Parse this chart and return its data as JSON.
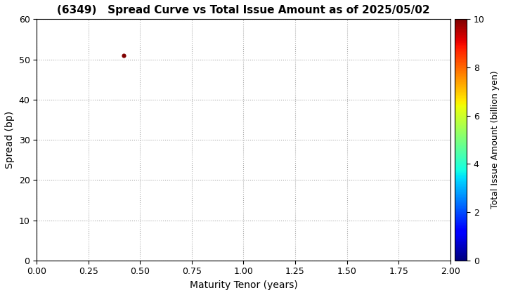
{
  "title": "(6349)   Spread Curve vs Total Issue Amount as of 2025/05/02",
  "xlabel": "Maturity Tenor (years)",
  "ylabel": "Spread (bp)",
  "colorbar_label": "Total Issue Amount (billion yen)",
  "xlim": [
    0.0,
    2.0
  ],
  "ylim": [
    0,
    60
  ],
  "xticks": [
    0.0,
    0.25,
    0.5,
    0.75,
    1.0,
    1.25,
    1.5,
    1.75,
    2.0
  ],
  "yticks": [
    0,
    10,
    20,
    30,
    40,
    50,
    60
  ],
  "xtick_labels": [
    "0.00",
    "0.25",
    "0.50",
    "0.75",
    "1.00",
    "1.25",
    "1.50",
    "1.75",
    "2.00"
  ],
  "ytick_labels": [
    "0",
    "10",
    "20",
    "30",
    "40",
    "50",
    "60"
  ],
  "colorbar_ticks": [
    0,
    2,
    4,
    6,
    8,
    10
  ],
  "colorbar_range": [
    0,
    10
  ],
  "scatter_x": [
    0.42
  ],
  "scatter_y": [
    51
  ],
  "scatter_color_values": [
    10.0
  ],
  "scatter_size": 12,
  "grid_color": "#aaaaaa",
  "background_color": "#ffffff",
  "title_fontsize": 11,
  "axis_label_fontsize": 10,
  "tick_fontsize": 9,
  "colorbar_label_fontsize": 9
}
